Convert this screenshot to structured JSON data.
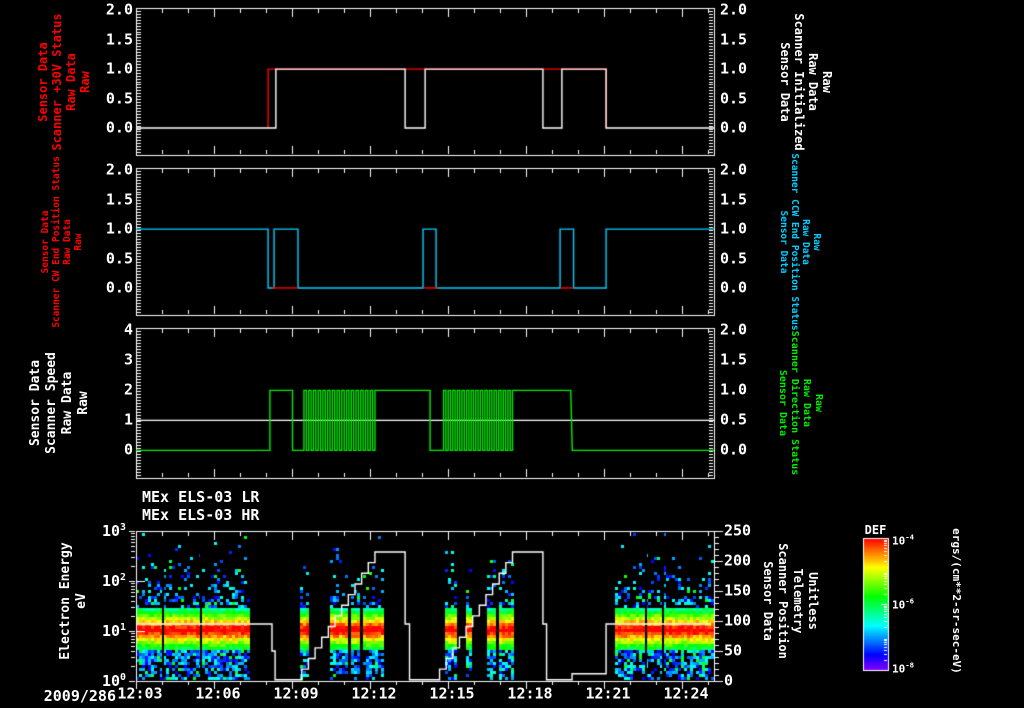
{
  "app": {
    "background": "#000000"
  },
  "chart_data": {
    "type": "line+heatmap",
    "titles": [
      "MEx ELS-03 LR",
      "MEx ELS-03 HR"
    ],
    "x_axis": {
      "date_label": "2009/286",
      "start_minute": 3,
      "end_minute": 25.23,
      "major_ticks": [
        3,
        6,
        9,
        12,
        15,
        18,
        21,
        24
      ],
      "tick_labels": [
        "12:03",
        "12:06",
        "12:09",
        "12:12",
        "12:15",
        "12:18",
        "12:21",
        "12:24"
      ],
      "minor_step": 1
    },
    "colors": {
      "red": "#ff0000",
      "white": "#ffffff",
      "cyan": "#00cfff",
      "green": "#00ee00"
    },
    "panels": [
      {
        "id": "scanner-30v-status",
        "type": "line",
        "ylim": [
          -0.46,
          2.04
        ],
        "yticks": {
          "values": [
            0,
            0.5,
            1,
            1.5,
            2
          ],
          "labels": [
            "0.0",
            "0.5",
            "1.0",
            "1.5",
            "2.0"
          ],
          "minor_step": 0.05
        },
        "left_label": {
          "lines": [
            "Sensor Data",
            "Scanner +30V Status",
            "Raw Data",
            "Raw"
          ],
          "color": "#ff0000"
        },
        "right_label": {
          "lines": [
            "Sensor Data",
            "Scanner Initialized",
            "Raw Data",
            "Raw"
          ],
          "color": "#ffffff"
        },
        "series": [
          {
            "name": "scanner-plus-30v-status",
            "color": "#ff0000",
            "connect": true,
            "segments": [
              {
                "type": "level",
                "t": [
                  8.08,
                  8.08
                ],
                "v": 0
              },
              {
                "type": "level",
                "t": [
                  8.08,
                  21.08
                ],
                "v": 1
              },
              {
                "type": "level",
                "t": [
                  21.08,
                  21.08
                ],
                "v": 0
              }
            ]
          },
          {
            "name": "scanner-initialized",
            "color": "#ffffff",
            "connect": true,
            "segments": [
              {
                "type": "level",
                "t": [
                  3,
                  8.38
                ],
                "v": 0
              },
              {
                "type": "level",
                "t": [
                  8.38,
                  13.35
                ],
                "v": 1
              },
              {
                "type": "level",
                "t": [
                  13.35,
                  14.12
                ],
                "v": 0
              },
              {
                "type": "level",
                "t": [
                  14.12,
                  18.65
                ],
                "v": 1
              },
              {
                "type": "level",
                "t": [
                  18.65,
                  19.38
                ],
                "v": 0
              },
              {
                "type": "level",
                "t": [
                  19.38,
                  21.08
                ],
                "v": 1
              },
              {
                "type": "level",
                "t": [
                  21.08,
                  25.23
                ],
                "v": 0
              }
            ]
          }
        ]
      },
      {
        "id": "scanner-end-position-status",
        "type": "line",
        "ylim": [
          -0.46,
          2.04
        ],
        "yticks": {
          "values": [
            0,
            0.5,
            1,
            1.5,
            2
          ],
          "labels": [
            "0.0",
            "0.5",
            "1.0",
            "1.5",
            "2.0"
          ],
          "minor_step": 0.05
        },
        "left_label": {
          "lines": [
            "Sensor Data",
            "Scanner CW End Position Status",
            "Raw Data",
            "Raw"
          ],
          "color": "#ff0000",
          "small": true
        },
        "right_label": {
          "lines": [
            "Sensor Data",
            "Scanner CCW End Position Status",
            "Raw Data",
            "Raw"
          ],
          "color": "#00cfff",
          "small": true
        },
        "series": [
          {
            "name": "scanner-ccw-end-position-status",
            "color": "#00cfff",
            "connect": true,
            "segments": [
              {
                "type": "level",
                "t": [
                  3,
                  8.08
                ],
                "v": 1
              },
              {
                "type": "level",
                "t": [
                  8.08,
                  8.31
                ],
                "v": 0
              },
              {
                "type": "level",
                "t": [
                  8.31,
                  9.23
                ],
                "v": 1
              },
              {
                "type": "level",
                "t": [
                  9.23,
                  14.04
                ],
                "v": 0
              },
              {
                "type": "level",
                "t": [
                  14.04,
                  14.54
                ],
                "v": 1
              },
              {
                "type": "level",
                "t": [
                  14.54,
                  19.31
                ],
                "v": 0
              },
              {
                "type": "level",
                "t": [
                  19.31,
                  19.83
                ],
                "v": 1
              },
              {
                "type": "level",
                "t": [
                  19.83,
                  21.08
                ],
                "v": 0
              },
              {
                "type": "level",
                "t": [
                  21.08,
                  25.23
                ],
                "v": 1
              }
            ]
          },
          {
            "name": "scanner-cw-end-position-status",
            "color": "#ff0000",
            "connect": false,
            "segments": [
              {
                "type": "level",
                "t": [
                  8.23,
                  9.23
                ],
                "v": 0
              },
              {
                "type": "level",
                "t": [
                  14.04,
                  14.62
                ],
                "v": 0
              },
              {
                "type": "level",
                "t": [
                  19.31,
                  19.83
                ],
                "v": 0
              }
            ]
          }
        ]
      },
      {
        "id": "scanner-speed-direction",
        "type": "line",
        "ylim": [
          -0.92,
          4.08
        ],
        "yticks": {
          "values": [
            0,
            1,
            2,
            3,
            4
          ],
          "labels": [
            "0",
            "1",
            "2",
            "3",
            "4"
          ],
          "minor_step": 0.1
        },
        "right_axis": {
          "scale": 2,
          "values": [
            0,
            0.5,
            1,
            1.5,
            2
          ],
          "labels": [
            "0.0",
            "0.5",
            "1.0",
            "1.5",
            "2.0"
          ],
          "minor_step": 0.05
        },
        "left_label": {
          "lines": [
            "Sensor Data",
            "Scanner Speed",
            "Raw Data",
            "Raw"
          ],
          "color": "#ffffff"
        },
        "right_label": {
          "lines": [
            "Sensor Data",
            "Scanner Direction Status",
            "Raw Data",
            "Raw"
          ],
          "color": "#00ee00",
          "small": true
        },
        "series": [
          {
            "name": "scanner-speed",
            "color": "#ffffff",
            "connect": true,
            "segments": [
              {
                "type": "level",
                "t": [
                  3,
                  25.23
                ],
                "v": 1
              }
            ]
          },
          {
            "name": "scanner-direction-status",
            "color": "#00ee00",
            "connect": true,
            "value_axis": "right",
            "segments": [
              {
                "type": "level",
                "t": [
                  3,
                  8.15
                ],
                "v": 0
              },
              {
                "type": "level",
                "t": [
                  8.15,
                  9.02
                ],
                "v": 1
              },
              {
                "type": "level",
                "t": [
                  9.02,
                  9.46
                ],
                "v": 0
              },
              {
                "type": "square",
                "t": [
                  9.46,
                  12.19
                ],
                "cycles": 15,
                "lo": 0,
                "hi": 1
              },
              {
                "type": "level",
                "t": [
                  12.19,
                  14.31
                ],
                "v": 1
              },
              {
                "type": "level",
                "t": [
                  14.31,
                  14.83
                ],
                "v": 0
              },
              {
                "type": "square",
                "t": [
                  14.83,
                  17.48
                ],
                "cycles": 15,
                "lo": 0,
                "hi": 1
              },
              {
                "type": "level",
                "t": [
                  17.48,
                  19.72
                ],
                "v": 1
              },
              {
                "type": "level",
                "t": [
                  19.78,
                  25.23
                ],
                "v": 0
              }
            ]
          }
        ]
      },
      {
        "id": "els-spectrogram",
        "type": "heatmap",
        "log_ylim": [
          0,
          3
        ],
        "yticks": {
          "values": [
            0,
            1,
            2,
            3
          ],
          "labels": [
            "10^0",
            "10^1",
            "10^2",
            "10^3"
          ]
        },
        "right_axis": {
          "range": [
            0,
            250
          ],
          "values": [
            0,
            50,
            100,
            150,
            200,
            250
          ],
          "labels": [
            "0",
            "50",
            "100",
            "150",
            "200",
            "250"
          ],
          "minor_step": 10
        },
        "left_label": {
          "lines": [
            "Electron Energy",
            "eV"
          ],
          "color": "#ffffff"
        },
        "right_label": {
          "lines": [
            "Sensor Data",
            "Scanner Position",
            "Telemetry",
            "Unitless"
          ],
          "color": "#ffffff"
        },
        "spectrogram": {
          "band_center_log_ev": 1.02,
          "band_sigma": 0.3,
          "regions": [
            {
              "t": [
                3.0,
                7.31
              ],
              "style": "dense",
              "gap_lines": [
                4.0,
                5.46
              ]
            },
            {
              "t": [
                9.08,
                12.46
              ],
              "style": "striped",
              "gap_lines": []
            },
            {
              "t": [
                14.42,
                17.92
              ],
              "style": "striped",
              "gap_lines": []
            },
            {
              "t": [
                21.42,
                25.15
              ],
              "style": "dense",
              "gap_lines": [
                22.58,
                23.23
              ]
            }
          ]
        },
        "series": [
          {
            "name": "scanner-position-telemetry",
            "color": "#ffffff",
            "connect": true,
            "value_axis": "right",
            "segments": [
              {
                "type": "level",
                "t": [
                  3,
                  8.23
                ],
                "v": 95
              },
              {
                "type": "level",
                "t": [
                  8.23,
                  8.35
                ],
                "v": 50
              },
              {
                "type": "level",
                "t": [
                  8.35,
                  9.12
                ],
                "v": 2
              },
              {
                "type": "stair",
                "t": [
                  9.12,
                  12.19
                ],
                "v0": 2,
                "v1": 215,
                "steps": 12
              },
              {
                "type": "level",
                "t": [
                  12.19,
                  13.35
                ],
                "v": 215
              },
              {
                "type": "level",
                "t": [
                  13.35,
                  13.52
                ],
                "v": 95
              },
              {
                "type": "level",
                "t": [
                  13.52,
                  14.42
                ],
                "v": 2
              },
              {
                "type": "stair",
                "t": [
                  14.42,
                  17.48
                ],
                "v0": 2,
                "v1": 215,
                "steps": 12
              },
              {
                "type": "level",
                "t": [
                  17.48,
                  18.65
                ],
                "v": 215
              },
              {
                "type": "level",
                "t": [
                  18.65,
                  18.79
                ],
                "v": 95
              },
              {
                "type": "level",
                "t": [
                  18.79,
                  19.77
                ],
                "v": 2
              },
              {
                "type": "level",
                "t": [
                  19.77,
                  21.08
                ],
                "v": 12
              },
              {
                "type": "level",
                "t": [
                  21.08,
                  25.12
                ],
                "v": 95
              }
            ]
          }
        ]
      }
    ],
    "colorbar": {
      "title": "DEF",
      "tick_labels": [
        "10^-4",
        "10^-6",
        "10^-8"
      ],
      "unit_label": "ergs/(cm**2-sr-sec-eV)"
    }
  }
}
